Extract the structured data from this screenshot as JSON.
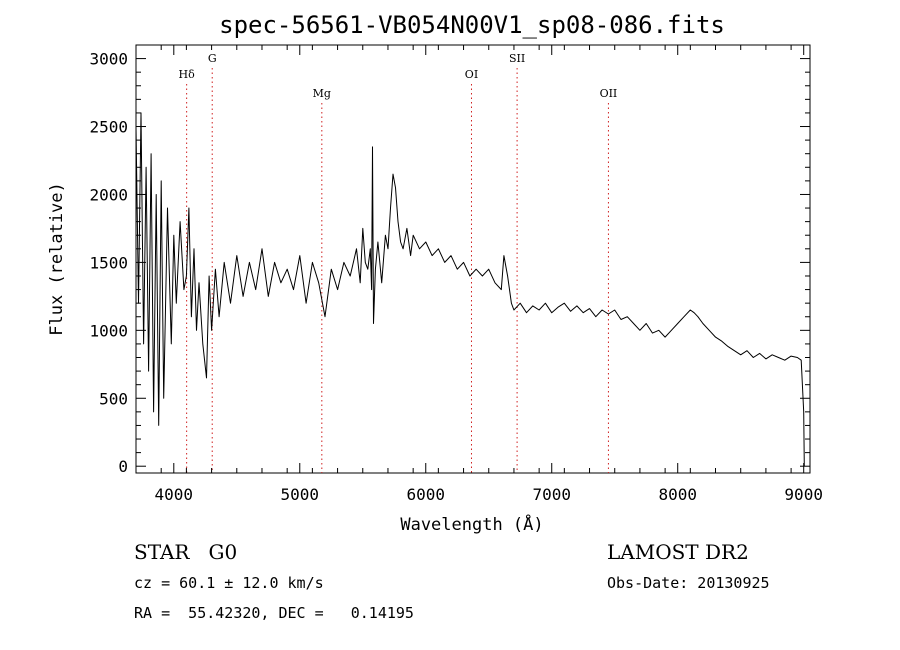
{
  "chart_data": {
    "type": "line",
    "title": "spec-56561-VB054N00V1_sp08-086.fits",
    "xlabel": "Wavelength (Å)",
    "ylabel": "Flux (relative)",
    "xlim": [
      3700,
      9050
    ],
    "ylim": [
      -50,
      3100
    ],
    "xticks": [
      4000,
      5000,
      6000,
      7000,
      8000,
      9000
    ],
    "yticks": [
      0,
      500,
      1000,
      1500,
      2000,
      2500,
      3000
    ],
    "line_markers": [
      {
        "label": "Hδ",
        "wavelength": 4102,
        "label_level": "high"
      },
      {
        "label": "G",
        "wavelength": 4305,
        "label_level": "top"
      },
      {
        "label": "Mg",
        "wavelength": 5175,
        "label_level": "low"
      },
      {
        "label": "OI",
        "wavelength": 6363,
        "label_level": "high"
      },
      {
        "label": "SII",
        "wavelength": 6725,
        "label_level": "top"
      },
      {
        "label": "OII",
        "wavelength": 7450,
        "label_level": "low"
      }
    ],
    "series": [
      {
        "name": "flux",
        "x": [
          3700,
          3720,
          3740,
          3760,
          3780,
          3800,
          3820,
          3840,
          3860,
          3880,
          3900,
          3920,
          3950,
          3980,
          4000,
          4020,
          4050,
          4080,
          4100,
          4120,
          4140,
          4160,
          4180,
          4200,
          4230,
          4260,
          4280,
          4300,
          4330,
          4360,
          4400,
          4450,
          4500,
          4550,
          4600,
          4650,
          4700,
          4750,
          4800,
          4850,
          4900,
          4950,
          5000,
          5050,
          5100,
          5150,
          5200,
          5250,
          5300,
          5350,
          5400,
          5450,
          5480,
          5500,
          5520,
          5540,
          5560,
          5570,
          5577,
          5585,
          5600,
          5620,
          5650,
          5680,
          5700,
          5720,
          5740,
          5760,
          5780,
          5800,
          5820,
          5850,
          5880,
          5900,
          5950,
          6000,
          6050,
          6100,
          6150,
          6200,
          6250,
          6300,
          6350,
          6400,
          6450,
          6500,
          6550,
          6600,
          6620,
          6650,
          6680,
          6700,
          6750,
          6800,
          6850,
          6900,
          6950,
          7000,
          7050,
          7100,
          7150,
          7200,
          7250,
          7300,
          7350,
          7400,
          7450,
          7500,
          7550,
          7600,
          7650,
          7700,
          7750,
          7800,
          7850,
          7900,
          7950,
          8000,
          8050,
          8100,
          8130,
          8160,
          8200,
          8250,
          8300,
          8350,
          8400,
          8450,
          8500,
          8550,
          8600,
          8650,
          8700,
          8750,
          8800,
          8850,
          8900,
          8950,
          8980,
          9000,
          9005
        ],
        "values": [
          2500,
          1200,
          2600,
          900,
          2200,
          700,
          2300,
          400,
          2000,
          300,
          2100,
          500,
          1900,
          900,
          1700,
          1200,
          1800,
          1300,
          1400,
          1900,
          1100,
          1600,
          1000,
          1350,
          900,
          650,
          1400,
          1000,
          1450,
          1100,
          1500,
          1200,
          1550,
          1250,
          1500,
          1300,
          1600,
          1250,
          1500,
          1350,
          1450,
          1300,
          1550,
          1200,
          1500,
          1350,
          1100,
          1450,
          1300,
          1500,
          1400,
          1600,
          1350,
          1750,
          1500,
          1450,
          1600,
          1300,
          2350,
          1050,
          1450,
          1650,
          1350,
          1700,
          1600,
          1900,
          2150,
          2050,
          1800,
          1650,
          1600,
          1750,
          1550,
          1700,
          1600,
          1650,
          1550,
          1600,
          1500,
          1550,
          1450,
          1500,
          1400,
          1450,
          1400,
          1450,
          1350,
          1300,
          1550,
          1400,
          1200,
          1150,
          1200,
          1130,
          1180,
          1150,
          1200,
          1130,
          1170,
          1200,
          1140,
          1180,
          1130,
          1160,
          1100,
          1150,
          1120,
          1150,
          1080,
          1100,
          1050,
          1000,
          1050,
          980,
          1000,
          950,
          1000,
          1050,
          1100,
          1150,
          1130,
          1100,
          1050,
          1000,
          950,
          920,
          880,
          850,
          820,
          850,
          800,
          830,
          790,
          820,
          800,
          780,
          810,
          800,
          780,
          400,
          0
        ]
      }
    ]
  },
  "info": {
    "object_line": "STAR   G0",
    "cz_line": "cz = 60.1 ± 12.0 km/s",
    "radec_line": "RA =  55.42320, DEC =   0.14195",
    "source_line": "LAMOST DR2",
    "obsdate_line": "Obs-Date: 20130925"
  }
}
